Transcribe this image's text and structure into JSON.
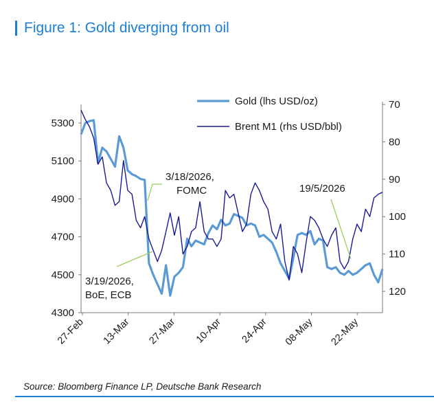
{
  "figure": {
    "title": "Figure 1: Gold diverging from oil",
    "source": "Source: Bloomberg Finance LP, Deutsche Bank Research",
    "accent_color": "#1c7fd6"
  },
  "chart_data": {
    "type": "line",
    "dual_axis": true,
    "x_tick_labels": [
      "27-Feb",
      "13-Mar",
      "27-Mar",
      "10-Apr",
      "24-Apr",
      "08-May",
      "22-May"
    ],
    "left_axis": {
      "ticks": [
        4300,
        4500,
        4700,
        4900,
        5100,
        5300
      ],
      "range": [
        4300,
        5300
      ],
      "unit_label": ""
    },
    "right_axis": {
      "ticks": [
        70,
        80,
        90,
        100,
        110,
        120
      ],
      "range": [
        70,
        120
      ],
      "inverted": true
    },
    "grid": false,
    "legend_position": "top-right",
    "series": [
      {
        "name": "Gold (lhs USD/oz)",
        "axis": "left",
        "color": "#5b9bd5",
        "values": [
          5240,
          5300,
          5310,
          5315,
          5090,
          5170,
          5150,
          5110,
          5070,
          5230,
          5170,
          5050,
          5030,
          5020,
          5005,
          5000,
          4560,
          4500,
          4450,
          4400,
          4550,
          4390,
          4490,
          4510,
          4540,
          4690,
          4650,
          4680,
          4670,
          4660,
          4720,
          4760,
          4740,
          4790,
          4760,
          4770,
          4820,
          4810,
          4800,
          4760,
          4770,
          4760,
          4700,
          4710,
          4690,
          4670,
          4620,
          4560,
          4520,
          4480,
          4590,
          4710,
          4720,
          4710,
          4730,
          4660,
          4690,
          4680,
          4540,
          4530,
          4540,
          4510,
          4500,
          4520,
          4500,
          4510,
          4530,
          4550,
          4560,
          4500,
          4460,
          4530
        ]
      },
      {
        "name": "Brent M1 (rhs USD/bbl)",
        "axis": "right",
        "color": "#1a1a96",
        "values": [
          71.5,
          74,
          76,
          79,
          86,
          84,
          91,
          93,
          97,
          96,
          85,
          93,
          94,
          101,
          103,
          100,
          106,
          109,
          112,
          109,
          104,
          99,
          105,
          100,
          110,
          108,
          104,
          103,
          96,
          104,
          106,
          106,
          108,
          106,
          93,
          95,
          94,
          99,
          104,
          102,
          94,
          91,
          93,
          96,
          98,
          104,
          106,
          102,
          112,
          117,
          108,
          110,
          115,
          107,
          100,
          101,
          103,
          106,
          108,
          105,
          103,
          112,
          114,
          112,
          106,
          102,
          104,
          98,
          100,
          95,
          94,
          93.5
        ]
      }
    ],
    "annotations": [
      {
        "label_lines": [
          "3/18/2026,",
          "FOMC"
        ]
      },
      {
        "label_lines": [
          "3/19/2026,",
          "BoE, ECB"
        ]
      },
      {
        "label_lines": [
          "19/5/2026"
        ]
      }
    ]
  }
}
